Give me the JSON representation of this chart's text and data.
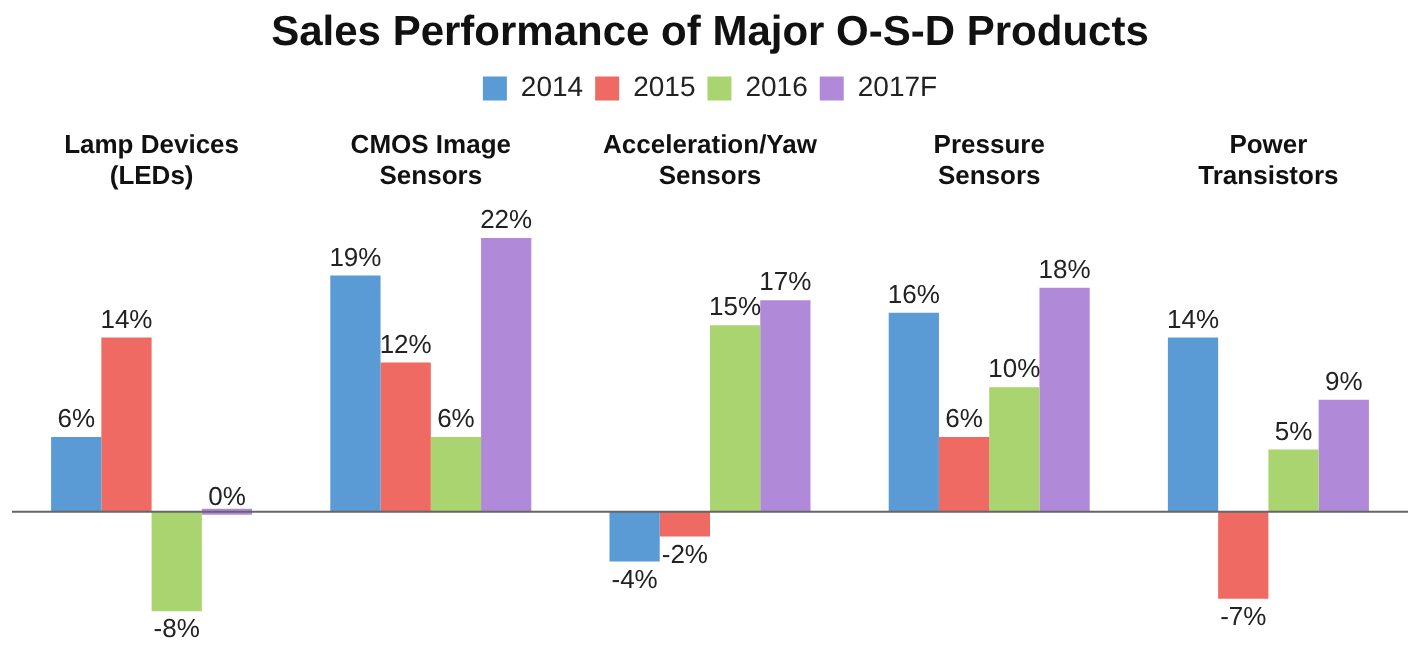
{
  "chart_data": {
    "type": "bar",
    "title": "Sales Performance of Major O-S-D Products",
    "categories": [
      "Lamp Devices (LEDs)",
      "CMOS Image Sensors",
      "Acceleration/Yaw Sensors",
      "Pressure Sensors",
      "Power Transistors"
    ],
    "series": [
      {
        "name": "2014",
        "color": "#5b9bd5",
        "values": [
          6,
          19,
          -4,
          16,
          14
        ],
        "value_labels": [
          "6%",
          "19%",
          "-4%",
          "16%",
          "14%"
        ]
      },
      {
        "name": "2015",
        "color": "#ee6a63",
        "values": [
          14,
          12,
          -2,
          6,
          -7
        ],
        "value_labels": [
          "14%",
          "12%",
          "-2%",
          "6%",
          "-7%"
        ]
      },
      {
        "name": "2016",
        "color": "#a9d46f",
        "values": [
          -8,
          6,
          15,
          10,
          5
        ],
        "value_labels": [
          "-8%",
          "6%",
          "15%",
          "10%",
          "5%"
        ]
      },
      {
        "name": "2017F",
        "color": "#b08ad8",
        "values": [
          0,
          22,
          17,
          18,
          9
        ],
        "value_labels": [
          "0%",
          "22%",
          "17%",
          "18%",
          "9%"
        ]
      }
    ],
    "legend": "top",
    "grid": false
  }
}
